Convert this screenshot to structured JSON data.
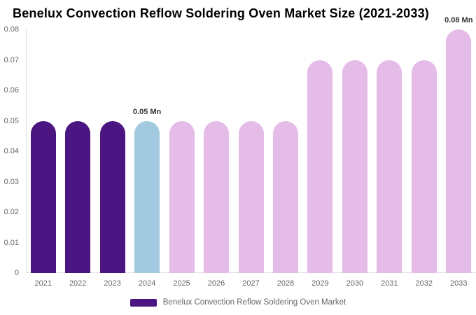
{
  "title": "Benelux Convection Reflow Soldering Oven Market Size (2021-2033)",
  "chart_data": {
    "type": "bar",
    "title": "Benelux Convection Reflow Soldering Oven Market Size (2021-2033)",
    "categories": [
      "2021",
      "2022",
      "2023",
      "2024",
      "2025",
      "2026",
      "2027",
      "2028",
      "2029",
      "2030",
      "2031",
      "2032",
      "2033"
    ],
    "values": [
      0.05,
      0.05,
      0.05,
      0.05,
      0.05,
      0.05,
      0.05,
      0.05,
      0.07,
      0.07,
      0.07,
      0.07,
      0.08
    ],
    "unit": "Mn",
    "xlabel": "",
    "ylabel": "",
    "ylim": [
      0,
      0.08
    ],
    "ytick_step": 0.01,
    "ytick_labels": [
      "0",
      "0.01",
      "0.02",
      "0.03",
      "0.04",
      "0.05",
      "0.06",
      "0.07",
      "0.08"
    ],
    "grid": false,
    "legend_position": "bottom",
    "bar_colors": [
      "#4B1582",
      "#4B1582",
      "#4B1582",
      "#A2C9DF",
      "#E5BBE8",
      "#E5BBE8",
      "#E5BBE8",
      "#E5BBE8",
      "#E5BBE8",
      "#E5BBE8",
      "#E5BBE8",
      "#E5BBE8",
      "#E5BBE8"
    ],
    "data_labels": [
      {
        "index": 3,
        "text": "0.05 Mn"
      },
      {
        "index": 12,
        "text": "0.08 Mn"
      }
    ]
  },
  "legend": {
    "label": "Benelux Convection Reflow Soldering Oven Market",
    "swatch_color": "#4B1582"
  },
  "colors": {
    "historical_bar": "#4B1582",
    "base_year_bar": "#A2C9DF",
    "forecast_bar": "#E5BBE8",
    "axis_line": "#E0E0E0",
    "axis_text": "#666666",
    "value_label_text": "#333333",
    "title_text": "#000000"
  }
}
